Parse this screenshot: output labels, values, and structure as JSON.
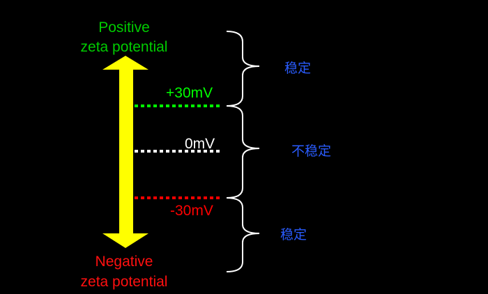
{
  "top_label": {
    "line1": "Positive",
    "line2": "zeta potential",
    "color": "#00cc00"
  },
  "bottom_label": {
    "line1": "Negative",
    "line2": "zeta potential",
    "color": "#ff1010"
  },
  "levels": [
    {
      "label": "+30mV",
      "color": "#00ff00"
    },
    {
      "label": "0mV",
      "color": "#ffffff"
    },
    {
      "label": "-30mV",
      "color": "#ff0000"
    }
  ],
  "regions": [
    {
      "label": "稳定"
    },
    {
      "label": "不稳定"
    },
    {
      "label": "稳定"
    }
  ],
  "arrow_color": "#ffff00",
  "region_text_color": "#2a5cff"
}
